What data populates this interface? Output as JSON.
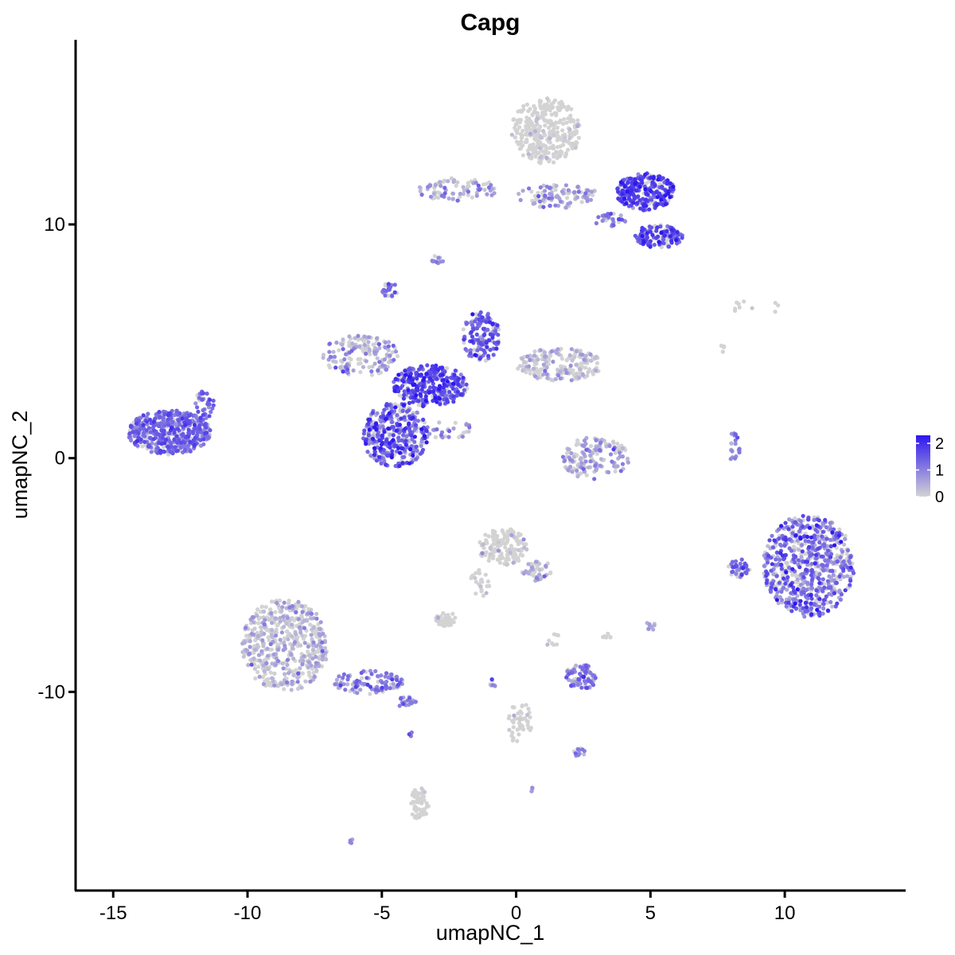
{
  "chart_data": {
    "type": "scatter",
    "title": "Capg",
    "xlabel": "umapNC_1",
    "ylabel": "umapNC_2",
    "xlim": [
      -16.4,
      14.5
    ],
    "ylim": [
      -18.5,
      17.9
    ],
    "x_ticks": [
      -15,
      -10,
      -5,
      0,
      5,
      10
    ],
    "x_tick_labels": [
      "-15",
      "-10",
      "-5",
      "0",
      "5",
      "10"
    ],
    "y_ticks": [
      -10,
      0,
      10
    ],
    "y_tick_labels": [
      "-10",
      "0",
      "10"
    ],
    "grid": false,
    "legend": {
      "position": "right",
      "type": "colorbar",
      "labels": [
        "2",
        "1",
        "0"
      ],
      "values": [
        2,
        1,
        0
      ],
      "range": [
        0,
        2.3
      ],
      "low_color": "#d3d3d3",
      "high_color": "#2d16f0"
    },
    "clusters": [
      {
        "cx": -12.9,
        "cy": 1.1,
        "rx": 1.55,
        "ry": 0.95,
        "n": 480,
        "expr": 1.25,
        "spread": 0.35
      },
      {
        "cx": -11.6,
        "cy": 2.3,
        "rx": 0.35,
        "ry": 0.6,
        "n": 35,
        "expr": 1.3,
        "spread": 0.3
      },
      {
        "cx": -4.5,
        "cy": 1.0,
        "rx": 1.2,
        "ry": 1.4,
        "n": 380,
        "expr": 1.35,
        "spread": 0.5
      },
      {
        "cx": -3.2,
        "cy": 3.1,
        "rx": 1.4,
        "ry": 0.9,
        "n": 320,
        "expr": 1.6,
        "spread": 0.4
      },
      {
        "cx": -5.8,
        "cy": 4.4,
        "rx": 1.4,
        "ry": 0.9,
        "n": 160,
        "expr": 0.45,
        "spread": 0.5
      },
      {
        "cx": -1.3,
        "cy": 5.2,
        "rx": 0.7,
        "ry": 1.1,
        "n": 140,
        "expr": 1.4,
        "spread": 0.4
      },
      {
        "cx": 1.6,
        "cy": 4.0,
        "rx": 1.6,
        "ry": 0.7,
        "n": 200,
        "expr": 0.2,
        "spread": 0.35
      },
      {
        "cx": -4.7,
        "cy": 7.2,
        "rx": 0.3,
        "ry": 0.3,
        "n": 25,
        "expr": 1.2,
        "spread": 0.2
      },
      {
        "cx": -2.5,
        "cy": 1.2,
        "rx": 0.9,
        "ry": 0.4,
        "n": 30,
        "expr": 0.9,
        "spread": 0.3
      },
      {
        "cx": 1.1,
        "cy": 14.0,
        "rx": 1.3,
        "ry": 1.4,
        "n": 340,
        "expr": 0.05,
        "spread": 0.2
      },
      {
        "cx": -2.2,
        "cy": 11.5,
        "rx": 1.5,
        "ry": 0.5,
        "n": 90,
        "expr": 0.4,
        "spread": 0.5
      },
      {
        "cx": 1.6,
        "cy": 11.2,
        "rx": 1.6,
        "ry": 0.5,
        "n": 100,
        "expr": 0.5,
        "spread": 0.5
      },
      {
        "cx": 4.8,
        "cy": 11.4,
        "rx": 1.1,
        "ry": 0.8,
        "n": 260,
        "expr": 1.7,
        "spread": 0.35
      },
      {
        "cx": 5.3,
        "cy": 9.5,
        "rx": 0.9,
        "ry": 0.5,
        "n": 130,
        "expr": 1.55,
        "spread": 0.35
      },
      {
        "cx": 3.5,
        "cy": 10.2,
        "rx": 0.6,
        "ry": 0.3,
        "n": 30,
        "expr": 1.1,
        "spread": 0.4
      },
      {
        "cx": -2.9,
        "cy": 8.5,
        "rx": 0.25,
        "ry": 0.2,
        "n": 12,
        "expr": 1.0,
        "spread": 0.3
      },
      {
        "cx": 2.9,
        "cy": 0.0,
        "rx": 1.3,
        "ry": 0.9,
        "n": 160,
        "expr": 0.35,
        "spread": 0.4
      },
      {
        "cx": 8.1,
        "cy": 0.5,
        "rx": 0.25,
        "ry": 0.6,
        "n": 20,
        "expr": 1.0,
        "spread": 0.3
      },
      {
        "cx": 10.9,
        "cy": -4.6,
        "rx": 1.7,
        "ry": 2.2,
        "n": 700,
        "expr": 1.1,
        "spread": 0.55
      },
      {
        "cx": 8.3,
        "cy": -4.7,
        "rx": 0.4,
        "ry": 0.4,
        "n": 40,
        "expr": 1.3,
        "spread": 0.3
      },
      {
        "cx": -8.6,
        "cy": -8.0,
        "rx": 1.6,
        "ry": 2.0,
        "n": 520,
        "expr": 0.2,
        "spread": 0.4
      },
      {
        "cx": -5.5,
        "cy": -9.6,
        "rx": 1.3,
        "ry": 0.5,
        "n": 110,
        "expr": 0.85,
        "spread": 0.5
      },
      {
        "cx": -4.1,
        "cy": -10.4,
        "rx": 0.4,
        "ry": 0.25,
        "n": 20,
        "expr": 1.0,
        "spread": 0.3
      },
      {
        "cx": -0.5,
        "cy": -3.8,
        "rx": 0.9,
        "ry": 0.8,
        "n": 160,
        "expr": 0.12,
        "spread": 0.3
      },
      {
        "cx": 0.8,
        "cy": -4.8,
        "rx": 0.6,
        "ry": 0.5,
        "n": 40,
        "expr": 0.35,
        "spread": 0.4
      },
      {
        "cx": -1.3,
        "cy": -5.3,
        "rx": 0.4,
        "ry": 0.6,
        "n": 25,
        "expr": 0.1,
        "spread": 0.2
      },
      {
        "cx": -2.6,
        "cy": -6.9,
        "rx": 0.4,
        "ry": 0.3,
        "n": 45,
        "expr": 0.1,
        "spread": 0.2
      },
      {
        "cx": 2.4,
        "cy": -9.4,
        "rx": 0.6,
        "ry": 0.6,
        "n": 80,
        "expr": 1.05,
        "spread": 0.4
      },
      {
        "cx": 0.1,
        "cy": -11.3,
        "rx": 0.5,
        "ry": 0.9,
        "n": 45,
        "expr": 0.1,
        "spread": 0.2
      },
      {
        "cx": 2.3,
        "cy": -12.6,
        "rx": 0.3,
        "ry": 0.2,
        "n": 15,
        "expr": 0.8,
        "spread": 0.4
      },
      {
        "cx": -3.6,
        "cy": -14.8,
        "rx": 0.35,
        "ry": 0.7,
        "n": 55,
        "expr": 0.05,
        "spread": 0.15
      },
      {
        "cx": 5.0,
        "cy": -7.2,
        "rx": 0.2,
        "ry": 0.2,
        "n": 10,
        "expr": 0.5,
        "spread": 0.3
      },
      {
        "cx": 3.4,
        "cy": -7.6,
        "rx": 0.2,
        "ry": 0.15,
        "n": 8,
        "expr": 0.1,
        "spread": 0.2
      },
      {
        "cx": 1.4,
        "cy": -7.8,
        "rx": 0.3,
        "ry": 0.3,
        "n": 8,
        "expr": 0.1,
        "spread": 0.2
      },
      {
        "cx": 8.9,
        "cy": 6.5,
        "rx": 1.3,
        "ry": 0.3,
        "n": 10,
        "expr": 0.05,
        "spread": 0.1
      },
      {
        "cx": 7.7,
        "cy": 4.7,
        "rx": 0.1,
        "ry": 0.2,
        "n": 4,
        "expr": 0.05,
        "spread": 0.1
      },
      {
        "cx": -6.1,
        "cy": -16.4,
        "rx": 0.1,
        "ry": 0.1,
        "n": 4,
        "expr": 0.8,
        "spread": 0.2
      },
      {
        "cx": -3.9,
        "cy": -11.8,
        "rx": 0.1,
        "ry": 0.1,
        "n": 4,
        "expr": 1.0,
        "spread": 0.2
      },
      {
        "cx": 0.6,
        "cy": -14.2,
        "rx": 0.1,
        "ry": 0.1,
        "n": 4,
        "expr": 0.6,
        "spread": 0.2
      },
      {
        "cx": -0.9,
        "cy": -9.6,
        "rx": 0.15,
        "ry": 0.4,
        "n": 8,
        "expr": 1.0,
        "spread": 0.3
      }
    ]
  }
}
